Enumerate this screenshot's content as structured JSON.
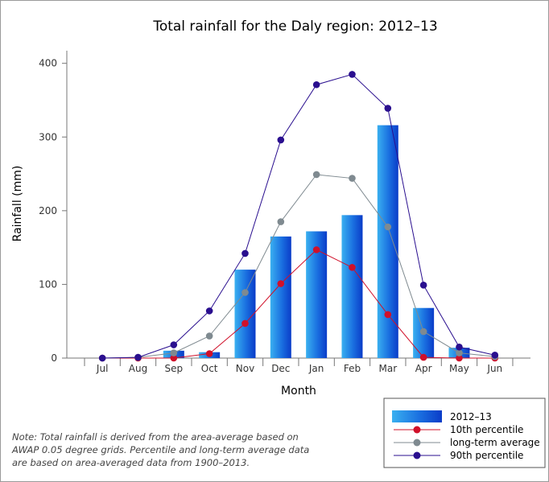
{
  "chart_data": {
    "type": "bar",
    "title": "Total rainfall for the Daly region: 2012–13",
    "xlabel": "Month",
    "ylabel": "Rainfall (mm)",
    "ylim": [
      0,
      420
    ],
    "yticks": [
      "0",
      "100",
      "200",
      "300",
      "400"
    ],
    "categories": [
      "Jul",
      "Aug",
      "Sep",
      "Oct",
      "Nov",
      "Dec",
      "Jan",
      "Feb",
      "Mar",
      "Apr",
      "May",
      "Jun"
    ],
    "grid": false,
    "legend_position": "bottom-right",
    "series": [
      {
        "name": "2012–13",
        "kind": "bar",
        "color": "#1560d6",
        "values": [
          0,
          0,
          10,
          8,
          120,
          165,
          172,
          194,
          316,
          68,
          14,
          0
        ]
      },
      {
        "name": "10th percentile",
        "kind": "line",
        "color": "#d0102a",
        "values": [
          0,
          0,
          0,
          6,
          47,
          101,
          147,
          123,
          59,
          1,
          0,
          0
        ]
      },
      {
        "name": "long-term average",
        "kind": "line",
        "color": "#7f8a90",
        "values": [
          0,
          1,
          7,
          30,
          89,
          185,
          249,
          244,
          178,
          36,
          7,
          2
        ]
      },
      {
        "name": "90th percentile",
        "kind": "line",
        "color": "#2a0f8f",
        "values": [
          0,
          1,
          18,
          64,
          142,
          296,
          371,
          385,
          339,
          99,
          15,
          4
        ]
      }
    ]
  },
  "note": "Note: Total rainfall is derived from the area-average based on\nAWAP 0.05 degree grids. Percentile and long-term average data\nare based on area-averaged data from 1900–2013."
}
